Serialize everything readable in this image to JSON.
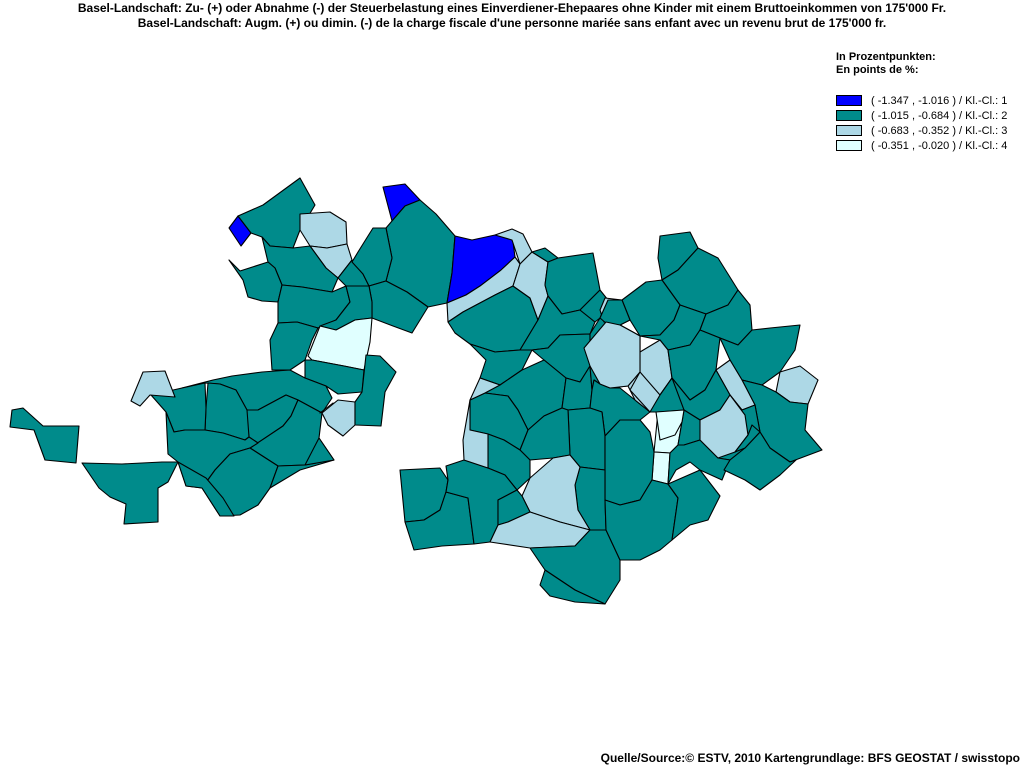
{
  "title": {
    "de": "Basel-Landschaft: Zu- (+) oder Abnahme (-) der Steuerbelastung eines Einverdiener-Ehepaares ohne Kinder mit einem Bruttoeinkommen von 175'000 Fr.",
    "fr": "Basel-Landschaft: Augm. (+) ou dimin. (-) de la charge fiscale d'une personne mariée sans enfant avec un revenu brut de 175'000 fr."
  },
  "legend": {
    "heading_de": "In Prozentpunkten:",
    "heading_fr": "En points de %:",
    "classes": [
      {
        "label": "( -1.347 , -1.016 ) / Kl.-Cl.: 1",
        "color": "#0000FF"
      },
      {
        "label": "( -1.015 , -0.684 ) / Kl.-Cl.: 2",
        "color": "#008B8B"
      },
      {
        "label": "( -0.683 , -0.352 ) / Kl.-Cl.: 3",
        "color": "#ADD8E6"
      },
      {
        "label": "( -0.351 , -0.020 ) / Kl.-Cl.: 4",
        "color": "#E0FFFF"
      }
    ]
  },
  "source": "Quelle/Source:© ESTV, 2010 Kartengrundlage: BFS GEOSTAT / swisstopo",
  "map": {
    "region": "Basel-Landschaft",
    "municipalities": [
      {
        "id": "m01",
        "class": 1
      },
      {
        "id": "m02",
        "class": 2
      },
      {
        "id": "m03",
        "class": 3
      },
      {
        "id": "m04",
        "class": 3
      },
      {
        "id": "m05",
        "class": 2
      },
      {
        "id": "m06",
        "class": 2
      },
      {
        "id": "m07",
        "class": 2
      },
      {
        "id": "m08",
        "class": 2
      },
      {
        "id": "m09",
        "class": 4
      },
      {
        "id": "m10",
        "class": 1
      },
      {
        "id": "m11",
        "class": 2
      },
      {
        "id": "m12",
        "class": 2
      },
      {
        "id": "m13",
        "class": 2
      },
      {
        "id": "m14",
        "class": 1
      },
      {
        "id": "m15",
        "class": 2
      },
      {
        "id": "m16",
        "class": 3
      },
      {
        "id": "m17",
        "class": 3
      },
      {
        "id": "m18",
        "class": 2
      },
      {
        "id": "m19",
        "class": 2
      },
      {
        "id": "m20",
        "class": 2
      },
      {
        "id": "m21",
        "class": 3
      },
      {
        "id": "m22",
        "class": 2
      },
      {
        "id": "m23",
        "class": 2
      },
      {
        "id": "m24",
        "class": 2
      },
      {
        "id": "m25",
        "class": 3
      },
      {
        "id": "m26",
        "class": 2
      },
      {
        "id": "m27",
        "class": 2
      },
      {
        "id": "m28",
        "class": 2
      },
      {
        "id": "m29",
        "class": 3
      },
      {
        "id": "m30",
        "class": 2
      },
      {
        "id": "m31",
        "class": 2
      },
      {
        "id": "m32",
        "class": 2
      },
      {
        "id": "m33",
        "class": 2
      },
      {
        "id": "m34",
        "class": 2
      },
      {
        "id": "m35",
        "class": 3
      },
      {
        "id": "m36",
        "class": 2
      },
      {
        "id": "m37",
        "class": 2
      },
      {
        "id": "m38",
        "class": 2
      },
      {
        "id": "m39",
        "class": 2
      },
      {
        "id": "m40",
        "class": 2
      },
      {
        "id": "m41",
        "class": 2
      },
      {
        "id": "m42",
        "class": 2
      },
      {
        "id": "m43",
        "class": 2
      },
      {
        "id": "m44",
        "class": 2
      },
      {
        "id": "m45",
        "class": 2
      },
      {
        "id": "m46",
        "class": 2
      },
      {
        "id": "m47",
        "class": 4
      },
      {
        "id": "m48",
        "class": 4
      },
      {
        "id": "m49",
        "class": 2
      },
      {
        "id": "m50",
        "class": 2
      },
      {
        "id": "m51",
        "class": 2
      },
      {
        "id": "m52",
        "class": 2
      },
      {
        "id": "m53",
        "class": 2
      },
      {
        "id": "m54",
        "class": 3
      },
      {
        "id": "m55",
        "class": 2
      },
      {
        "id": "m56",
        "class": 2
      },
      {
        "id": "m57",
        "class": 2
      },
      {
        "id": "m58",
        "class": 2
      },
      {
        "id": "m59",
        "class": 3
      },
      {
        "id": "m60",
        "class": 2
      },
      {
        "id": "m61",
        "class": 3
      },
      {
        "id": "m62",
        "class": 2
      },
      {
        "id": "m63",
        "class": 2
      },
      {
        "id": "m64",
        "class": 2
      },
      {
        "id": "m65",
        "class": 2
      },
      {
        "id": "m66",
        "class": 3
      },
      {
        "id": "m67",
        "class": 2
      },
      {
        "id": "m68",
        "class": 2
      },
      {
        "id": "m69",
        "class": 2
      },
      {
        "id": "m70",
        "class": 3
      },
      {
        "id": "m71",
        "class": 2
      },
      {
        "id": "m72",
        "class": 2
      },
      {
        "id": "m73",
        "class": 3
      },
      {
        "id": "m74",
        "class": 2
      },
      {
        "id": "m75",
        "class": 3
      },
      {
        "id": "m76",
        "class": 2
      },
      {
        "id": "m77",
        "class": 2
      },
      {
        "id": "m78",
        "class": 2
      },
      {
        "id": "m79",
        "class": 2
      },
      {
        "id": "m80",
        "class": 2
      },
      {
        "id": "m81",
        "class": 3
      },
      {
        "id": "m82",
        "class": 3
      },
      {
        "id": "m83",
        "class": 2
      },
      {
        "id": "m84",
        "class": 4
      },
      {
        "id": "m85",
        "class": 3
      },
      {
        "id": "m86",
        "class": 2
      },
      {
        "id": "m87",
        "class": 2
      },
      {
        "id": "m88",
        "class": 2
      },
      {
        "id": "m89",
        "class": 2
      }
    ]
  }
}
